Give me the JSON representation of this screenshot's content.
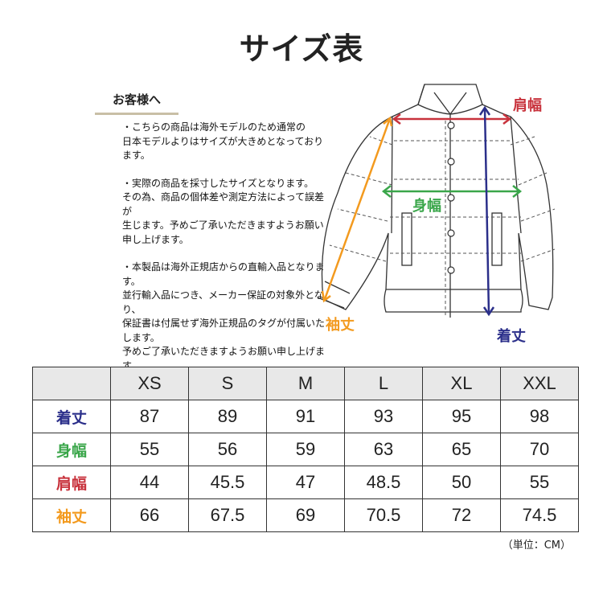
{
  "title": "サイズ表",
  "notice": {
    "heading": "お客様へ",
    "paragraphs": [
      "・こちらの商品は海外モデルのため通常の\n日本モデルよりはサイズが大きめとなっております。",
      "・実際の商品を採寸したサイズとなります。\nその為、商品の個体差や測定方法によって誤差が\n生じます。予めご了承いただきますようお願い\n申し上げます。",
      "・本製品は海外正規店からの直輸入品となります。\n並行輸入品につき、メーカー保証の対象外となり、\n保証書は付属せず海外正規品のタグが付属いたします。\n予めご了承いただきますようお願い申し上げます。"
    ]
  },
  "diagram": {
    "labels": {
      "shoulder": {
        "text": "肩幅",
        "color": "#c8323c"
      },
      "body_width": {
        "text": "身幅",
        "color": "#3aa64a"
      },
      "sleeve": {
        "text": "袖丈",
        "color": "#f39a1e"
      },
      "length": {
        "text": "着丈",
        "color": "#2b2f8a"
      }
    }
  },
  "table": {
    "sizes": [
      "XS",
      "S",
      "M",
      "L",
      "XL",
      "XXL"
    ],
    "rows": [
      {
        "label": "着丈",
        "color": "#2b2f8a",
        "values": [
          "87",
          "89",
          "91",
          "93",
          "95",
          "98"
        ]
      },
      {
        "label": "身幅",
        "color": "#3aa64a",
        "values": [
          "55",
          "56",
          "59",
          "63",
          "65",
          "70"
        ]
      },
      {
        "label": "肩幅",
        "color": "#c8323c",
        "values": [
          "44",
          "45.5",
          "47",
          "48.5",
          "50",
          "55"
        ]
      },
      {
        "label": "袖丈",
        "color": "#f39a1e",
        "values": [
          "66",
          "67.5",
          "69",
          "70.5",
          "72",
          "74.5"
        ]
      }
    ]
  },
  "unit": "（単位：CM）"
}
